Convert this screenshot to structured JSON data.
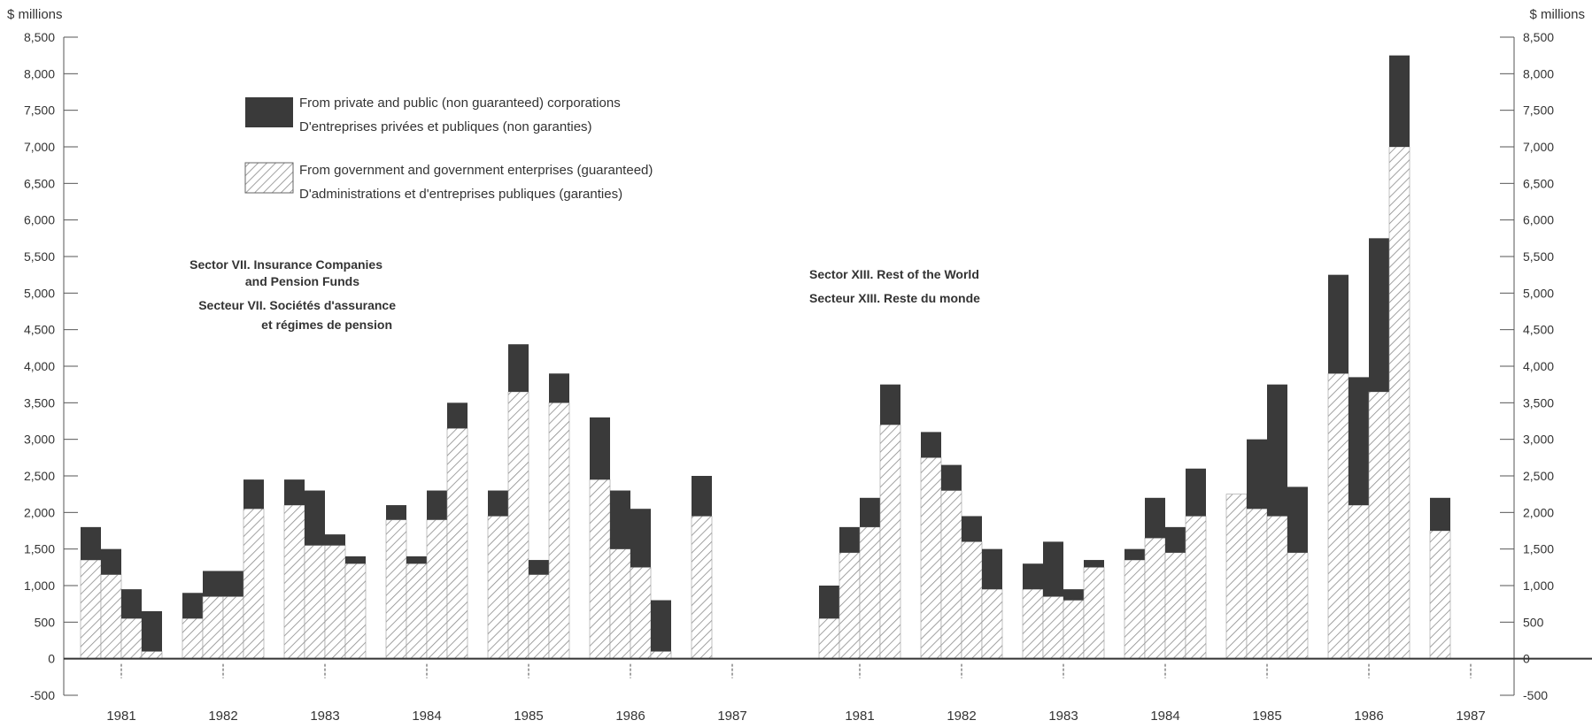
{
  "colors": {
    "private": "#3a3a3a",
    "government_hatch": "#8a8a8a",
    "axis": "#555555"
  },
  "chart_data": {
    "type": "bar",
    "stacked": true,
    "unit_left": "$ millions",
    "unit_right": "$ millions",
    "ylim": [
      -500,
      8500
    ],
    "yticks": [
      -500,
      0,
      500,
      1000,
      1500,
      2000,
      2500,
      3000,
      3500,
      4000,
      4500,
      5000,
      5500,
      6000,
      6500,
      7000,
      7500,
      8000,
      8500
    ],
    "ytick_labels": [
      "-500",
      "0",
      "500",
      "1,000",
      "1,500",
      "2,000",
      "2,500",
      "3,000",
      "3,500",
      "4,000",
      "4,500",
      "5,000",
      "5,500",
      "6,000",
      "6,500",
      "7,000",
      "7,500",
      "8,000",
      "8,500"
    ],
    "legend": [
      {
        "line1": "From private and public (non guaranteed) corporations",
        "line2": "D'entreprises privées et publiques (non garanties)",
        "style": "solid"
      },
      {
        "line1": "From government and government enterprises (guaranteed)",
        "line2": "D'administrations et d'entreprises publiques (garanties)",
        "style": "hatched"
      }
    ],
    "panels": [
      {
        "title": [
          "Sector VII. Insurance Companies",
          "and Pension Funds"
        ],
        "title_fr": [
          "Secteur VII. Sociétés d'assurance",
          "et régimes de pension"
        ],
        "years": [
          "1981",
          "1982",
          "1983",
          "1984",
          "1985",
          "1986",
          "1987"
        ],
        "quarters": [
          "1981 Q1",
          "1981 Q2",
          "1981 Q3",
          "1981 Q4",
          "1982 Q1",
          "1982 Q2",
          "1982 Q3",
          "1982 Q4",
          "1983 Q1",
          "1983 Q2",
          "1983 Q3",
          "1983 Q4",
          "1984 Q1",
          "1984 Q2",
          "1984 Q3",
          "1984 Q4",
          "1985 Q1",
          "1985 Q2",
          "1985 Q3",
          "1985 Q4",
          "1986 Q1",
          "1986 Q2",
          "1986 Q3",
          "1986 Q4",
          "1987 Q1"
        ],
        "series": [
          {
            "name": "From government and government enterprises (guaranteed)",
            "values": [
              1350,
              1150,
              550,
              100,
              550,
              850,
              850,
              2050,
              2100,
              1550,
              1550,
              1300,
              1900,
              1300,
              1900,
              3150,
              1950,
              3650,
              1150,
              3500,
              2450,
              1500,
              1250,
              100,
              1950
            ]
          },
          {
            "name": "From private and public (non guaranteed) corporations",
            "values": [
              450,
              350,
              400,
              550,
              350,
              350,
              350,
              400,
              350,
              750,
              150,
              100,
              200,
              100,
              400,
              350,
              350,
              650,
              200,
              400,
              850,
              800,
              800,
              700,
              550
            ]
          }
        ]
      },
      {
        "title": [
          "Sector XIII. Rest of the World"
        ],
        "title_fr": [
          "Secteur XIII. Reste du monde"
        ],
        "years": [
          "1981",
          "1982",
          "1983",
          "1984",
          "1985",
          "1986",
          "1987"
        ],
        "quarters": [
          "1981 Q1",
          "1981 Q2",
          "1981 Q3",
          "1981 Q4",
          "1982 Q1",
          "1982 Q2",
          "1982 Q3",
          "1982 Q4",
          "1983 Q1",
          "1983 Q2",
          "1983 Q3",
          "1983 Q4",
          "1984 Q1",
          "1984 Q2",
          "1984 Q3",
          "1984 Q4",
          "1985 Q1",
          "1985 Q2",
          "1985 Q3",
          "1985 Q4",
          "1986 Q1",
          "1986 Q2",
          "1986 Q3",
          "1986 Q4",
          "1987 Q1"
        ],
        "series": [
          {
            "name": "From government and government enterprises (guaranteed)",
            "values": [
              550,
              1450,
              1800,
              3200,
              2750,
              2300,
              1600,
              950,
              950,
              850,
              800,
              1250,
              1350,
              1650,
              1450,
              1950,
              2250,
              2050,
              1950,
              1450,
              3900,
              2100,
              3650,
              7000,
              1750
            ]
          },
          {
            "name": "From private and public (non guaranteed) corporations",
            "values": [
              450,
              350,
              400,
              550,
              350,
              350,
              350,
              550,
              350,
              750,
              150,
              100,
              150,
              550,
              350,
              650,
              0,
              950,
              1800,
              900,
              1350,
              1750,
              2100,
              1250,
              450
            ]
          }
        ]
      }
    ]
  }
}
